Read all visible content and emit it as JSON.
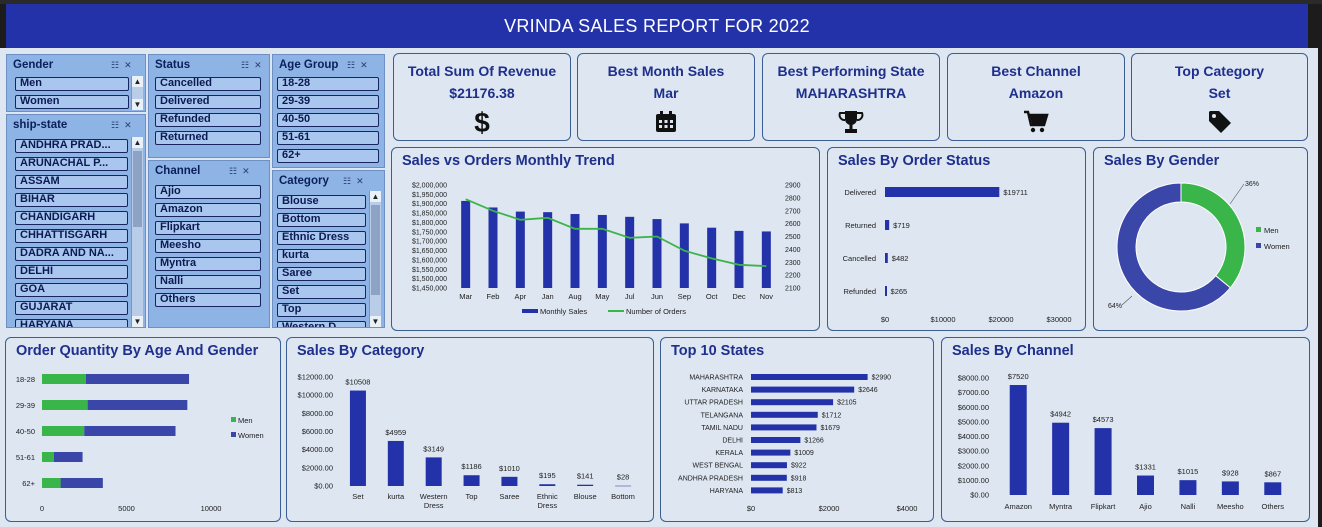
{
  "title": "VRINDA SALES REPORT FOR 2022",
  "colors": {
    "header": "#2332a8",
    "bar": "#2332a8",
    "line": "#3ab54a",
    "men": "#3ab54a",
    "women": "#3b47a8"
  },
  "slicers": {
    "gender": {
      "title": "Gender",
      "items": [
        "Men",
        "Women"
      ]
    },
    "ship_state": {
      "title": "ship-state",
      "items": [
        "ANDHRA PRAD...",
        "ARUNACHAL P...",
        "ASSAM",
        "BIHAR",
        "CHANDIGARH",
        "CHHATTISGARH",
        "DADRA AND NA...",
        "DELHI",
        "GOA",
        "GUJARAT",
        "HARYANA"
      ]
    },
    "status": {
      "title": "Status",
      "items": [
        "Cancelled",
        "Delivered",
        "Refunded",
        "Returned"
      ]
    },
    "channel": {
      "title": "Channel",
      "items": [
        "Ajio",
        "Amazon",
        "Flipkart",
        "Meesho",
        "Myntra",
        "Nalli",
        "Others"
      ]
    },
    "age_group": {
      "title": "Age Group",
      "items": [
        "18-28",
        "29-39",
        "40-50",
        "51-61",
        "62+"
      ]
    },
    "category": {
      "title": "Category",
      "items": [
        "Blouse",
        "Bottom",
        "Ethnic Dress",
        "kurta",
        "Saree",
        "Set",
        "Top",
        "Western D..."
      ]
    }
  },
  "kpis": [
    {
      "title": "Total Sum Of Revenue",
      "value": "$21176.38",
      "icon": "dollar-icon"
    },
    {
      "title": "Best Month Sales",
      "value": "Mar",
      "icon": "calendar-icon"
    },
    {
      "title": "Best Performing State",
      "value": "MAHARASHTRA",
      "icon": "trophy-icon"
    },
    {
      "title": "Best Channel",
      "value": "Amazon",
      "icon": "cart-icon"
    },
    {
      "title": "Top Category",
      "value": "Set",
      "icon": "tag-icon"
    }
  ],
  "chart_data": [
    {
      "id": "monthly",
      "type": "bar",
      "title": "Sales vs Orders Monthly Trend",
      "categories": [
        "Mar",
        "Feb",
        "Apr",
        "Jan",
        "Aug",
        "May",
        "Jul",
        "Jun",
        "Sep",
        "Oct",
        "Dec",
        "Nov"
      ],
      "series": [
        {
          "name": "Monthly Sales",
          "type": "bar",
          "axis": "left",
          "values": [
            1915000,
            1880000,
            1858000,
            1855000,
            1845000,
            1840000,
            1830000,
            1818000,
            1795000,
            1772000,
            1755000,
            1752000
          ]
        },
        {
          "name": "Number of Orders",
          "type": "line",
          "axis": "right",
          "values": [
            2790,
            2700,
            2630,
            2645,
            2560,
            2560,
            2490,
            2500,
            2390,
            2330,
            2280,
            2270
          ]
        }
      ],
      "ylim_left": [
        1450000,
        2000000
      ],
      "ylim_right": [
        2100,
        2900
      ],
      "yticks_left": [
        "$2,000,000",
        "$1,950,000",
        "$1,900,000",
        "$1,850,000",
        "$1,800,000",
        "$1,750,000",
        "$1,700,000",
        "$1,650,000",
        "$1,600,000",
        "$1,550,000",
        "$1,500,000",
        "$1,450,000"
      ],
      "yticks_right": [
        "2900",
        "2800",
        "2700",
        "2600",
        "2500",
        "2400",
        "2300",
        "2200",
        "2100"
      ],
      "legend": "bottom"
    },
    {
      "id": "status",
      "type": "bar",
      "orientation": "horizontal",
      "title": "Sales By Order Status",
      "categories": [
        "Delivered",
        "Returned",
        "Cancelled",
        "Refunded"
      ],
      "values": [
        19711,
        719,
        482,
        265
      ],
      "labels": [
        "$19711",
        "$719",
        "$482",
        "$265"
      ],
      "xlim": [
        0,
        30000
      ],
      "xticks": [
        "$0",
        "$10000",
        "$20000",
        "$30000"
      ]
    },
    {
      "id": "gender",
      "type": "pie",
      "title": "Sales By Gender",
      "categories": [
        "Men",
        "Women"
      ],
      "values": [
        36,
        64
      ],
      "labels": [
        "36%",
        "64%"
      ],
      "legend": "right"
    },
    {
      "id": "age",
      "type": "bar",
      "orientation": "horizontal",
      "stacked": true,
      "title": "Order Quantity By Age And Gender",
      "categories": [
        "18-28",
        "29-39",
        "40-50",
        "51-61",
        "62+"
      ],
      "series": [
        {
          "name": "Men",
          "values": [
            2600,
            2700,
            2500,
            700,
            1100
          ]
        },
        {
          "name": "Women",
          "values": [
            6100,
            5900,
            5400,
            1700,
            2500
          ]
        }
      ],
      "xlim": [
        0,
        10000
      ],
      "xticks": [
        "0",
        "5000",
        "10000"
      ],
      "legend": "right"
    },
    {
      "id": "category",
      "type": "bar",
      "title": "Sales By Category",
      "categories": [
        "Set",
        "kurta",
        "Western Dress",
        "Top",
        "Saree",
        "Ethnic Dress",
        "Blouse",
        "Bottom"
      ],
      "values": [
        10508,
        4959,
        3149,
        1186,
        1010,
        195,
        141,
        28
      ],
      "labels": [
        "$10508",
        "$4959",
        "$3149",
        "$1186",
        "$1010",
        "$195",
        "$141",
        "$28"
      ],
      "ylim": [
        0,
        12000
      ],
      "yticks": [
        "$12000.00",
        "$10000.00",
        "$8000.00",
        "$6000.00",
        "$4000.00",
        "$2000.00",
        "$0.00"
      ]
    },
    {
      "id": "states",
      "type": "bar",
      "orientation": "horizontal",
      "title": "Top 10 States",
      "categories": [
        "MAHARASHTRA",
        "KARNATAKA",
        "UTTAR PRADESH",
        "TELANGANA",
        "TAMIL NADU",
        "DELHI",
        "KERALA",
        "WEST BENGAL",
        "ANDHRA PRADESH",
        "HARYANA"
      ],
      "values": [
        2990,
        2646,
        2105,
        1712,
        1679,
        1266,
        1009,
        922,
        918,
        813
      ],
      "labels": [
        "$2990",
        "$2646",
        "$2105",
        "$1712",
        "$1679",
        "$1266",
        "$1009",
        "$922",
        "$918",
        "$813"
      ],
      "xlim": [
        0,
        4000
      ],
      "xticks": [
        "$0",
        "$2000",
        "$4000"
      ]
    },
    {
      "id": "channel",
      "type": "bar",
      "title": "Sales By Channel",
      "categories": [
        "Amazon",
        "Myntra",
        "Flipkart",
        "Ajio",
        "Nalli",
        "Meesho",
        "Others"
      ],
      "values": [
        7520,
        4942,
        4573,
        1331,
        1015,
        928,
        867
      ],
      "labels": [
        "$7520",
        "$4942",
        "$4573",
        "$1331",
        "$1015",
        "$928",
        "$867"
      ],
      "ylim": [
        0,
        8000
      ],
      "yticks": [
        "$8000.00",
        "$7000.00",
        "$6000.00",
        "$5000.00",
        "$4000.00",
        "$3000.00",
        "$2000.00",
        "$1000.00",
        "$0.00"
      ]
    }
  ]
}
